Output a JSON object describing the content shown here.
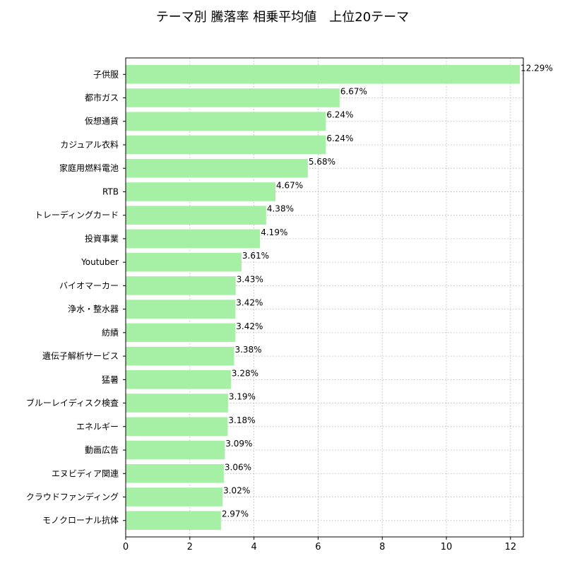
{
  "chart_data": {
    "type": "bar",
    "orientation": "horizontal",
    "title": "テーマ別 騰落率 相乗平均値　上位20テーマ",
    "xlabel": "",
    "ylabel": "",
    "xlim": [
      0,
      12.4
    ],
    "x_ticks": [
      0,
      2,
      4,
      6,
      8,
      10,
      12
    ],
    "grid": true,
    "bar_color": "#a6f0a6",
    "value_suffix": "%",
    "categories": [
      "子供服",
      "都市ガス",
      "仮想通貨",
      "カジュアル衣料",
      "家庭用燃料電池",
      "RTB",
      "トレーディングカード",
      "投資事業",
      "Youtuber",
      "バイオマーカー",
      "浄水・整水器",
      "紡績",
      "遺伝子解析サービス",
      "猛暑",
      "ブルーレイディスク検査",
      "エネルギー",
      "動画広告",
      "エヌビディア関連",
      "クラウドファンディング",
      "モノクローナル抗体"
    ],
    "values": [
      12.29,
      6.67,
      6.24,
      6.24,
      5.68,
      4.67,
      4.38,
      4.19,
      3.61,
      3.43,
      3.42,
      3.42,
      3.38,
      3.28,
      3.19,
      3.18,
      3.09,
      3.06,
      3.02,
      2.97
    ],
    "value_labels": [
      "12.29%",
      "6.67%",
      "6.24%",
      "6.24%",
      "5.68%",
      "4.67%",
      "4.38%",
      "4.19%",
      "3.61%",
      "3.43%",
      "3.42%",
      "3.42%",
      "3.38%",
      "3.28%",
      "3.19%",
      "3.18%",
      "3.09%",
      "3.06%",
      "3.02%",
      "2.97%"
    ]
  }
}
